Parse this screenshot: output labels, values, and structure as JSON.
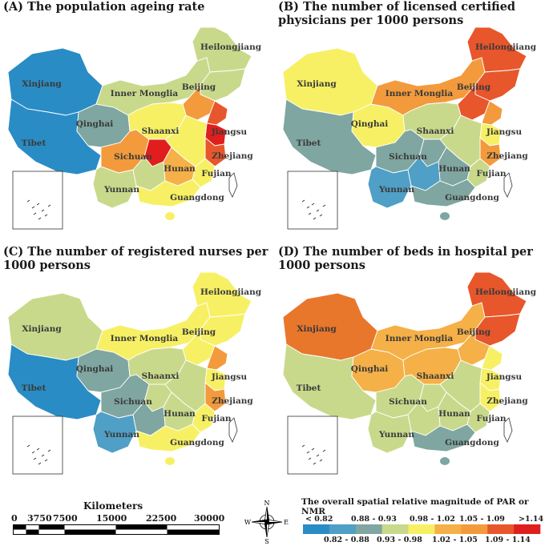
{
  "panels": [
    {
      "title": "(A) The population ageing rate",
      "colors": {
        "xinjiang": "#2a8cc4",
        "tibet": "#2a8cc4",
        "qinghai": "#7fa6a0",
        "inner_mongolia": "#c9d98b",
        "heilongjiang": "#c9d98b",
        "northeast": "#c9d98b",
        "beijing_area": "#f39a3c",
        "shandong": "#e8562b",
        "jiangsu": "#e01e1e",
        "sichuan": "#f39a3c",
        "chongqing": "#e01e1e",
        "hunan": "#f5b047",
        "yunnan": "#c9d98b",
        "guangdong": "#f7f064",
        "fujian": "#f7f064",
        "zhejiang": "#e8562b",
        "shaanxi": "#f7f064",
        "central": "#f7f064",
        "south_west": "#c9d98b"
      }
    },
    {
      "title": "(B) The number of licensed certified physicians per 1000 persons",
      "colors": {
        "xinjiang": "#f7f064",
        "tibet": "#7fa6a0",
        "qinghai": "#f7f064",
        "inner_mongolia": "#f39a3c",
        "heilongjiang": "#e8562b",
        "northeast": "#e8562b",
        "beijing_area": "#e8562b",
        "shandong": "#f39a3c",
        "jiangsu": "#f7f064",
        "sichuan": "#7fa6a0",
        "chongqing": "#7fa6a0",
        "hunan": "#7fa6a0",
        "yunnan": "#4f9fc6",
        "guangdong": "#7fa6a0",
        "fujian": "#c9d98b",
        "zhejiang": "#f39a3c",
        "shaanxi": "#c9d98b",
        "central": "#c9d98b",
        "south_west": "#4f9fc6"
      }
    },
    {
      "title": "(C) The number of registered nurses per 1000 persons",
      "colors": {
        "xinjiang": "#c9d98b",
        "tibet": "#2a8cc4",
        "qinghai": "#7fa6a0",
        "inner_mongolia": "#f7f064",
        "heilongjiang": "#f7f064",
        "northeast": "#f7f064",
        "beijing_area": "#f7f064",
        "shandong": "#f39a3c",
        "jiangsu": "#f7f064",
        "sichuan": "#7fa6a0",
        "chongqing": "#c9d98b",
        "hunan": "#c9d98b",
        "yunnan": "#4f9fc6",
        "guangdong": "#f7f064",
        "fujian": "#f7f064",
        "zhejiang": "#f39a3c",
        "shaanxi": "#c9d98b",
        "central": "#c9d98b",
        "south_west": "#7fa6a0"
      }
    },
    {
      "title": "(D) The number of beds in hospital per 1000 persons",
      "colors": {
        "xinjiang": "#e8762b",
        "tibet": "#c9d98b",
        "qinghai": "#f5b047",
        "inner_mongolia": "#f5b047",
        "heilongjiang": "#e8562b",
        "northeast": "#e8562b",
        "beijing_area": "#f5b047",
        "shandong": "#f7f064",
        "jiangsu": "#f7f064",
        "sichuan": "#c9d98b",
        "chongqing": "#c9d98b",
        "hunan": "#c9d98b",
        "yunnan": "#c9d98b",
        "guangdong": "#7fa6a0",
        "fujian": "#c9d98b",
        "zhejiang": "#f7f064",
        "shaanxi": "#f5b047",
        "central": "#c9d98b",
        "south_west": "#c9d98b"
      }
    }
  ],
  "labels": {
    "xinjiang": "Xinjiang",
    "tibet": "Tibet",
    "qinghai": "Qinghai",
    "inner_mongolia": "Inner Monglia",
    "heilongjiang": "Heilongjiang",
    "beijing": "Beijing",
    "shaanxi": "Shaanxi",
    "jiangsu": "Jiangsu",
    "sichuan": "Sichuan",
    "hunan": "Hunan",
    "zhejiang": "Zhejiang",
    "fujian": "Fujian",
    "yunnan": "Yunnan",
    "guangdong": "Guangdong"
  },
  "scale": {
    "title": "Kilometers",
    "ticks": [
      "0",
      "3750",
      "7500",
      "15000",
      "22500",
      "30000"
    ]
  },
  "compass": {
    "n": "N",
    "s": "S",
    "e": "E",
    "w": "W"
  },
  "legend": {
    "title": "The overall spatial relative magnitude of PAR or NMR",
    "top_labels": [
      "< 0.82",
      "0.88 - 0.93",
      "0.98 - 1.02",
      "1.05 - 1.09",
      ">1.14"
    ],
    "bottom_labels": [
      "0.82 - 0.88",
      "0.93 - 0.98",
      "1.02 - 1.05",
      "1.09 - 1.14"
    ],
    "colors": [
      "#2a8cc4",
      "#4f9fc6",
      "#7fa6a0",
      "#c9d98b",
      "#f7f064",
      "#f5b047",
      "#f39a3c",
      "#e8562b",
      "#e01e1e"
    ]
  }
}
